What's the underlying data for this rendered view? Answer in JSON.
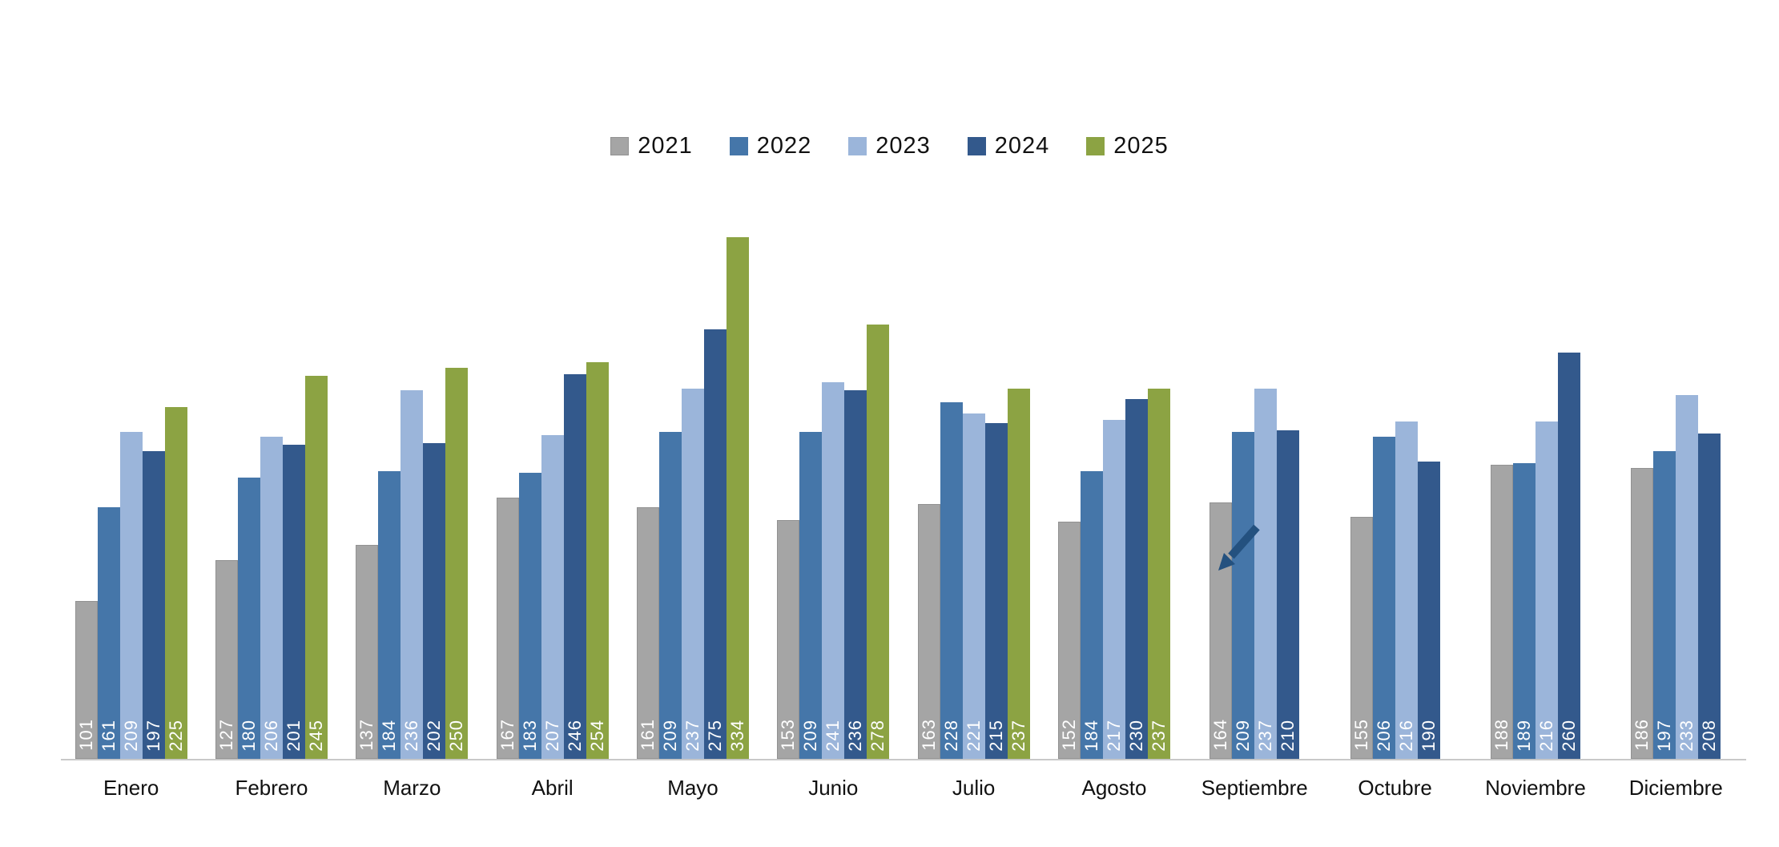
{
  "chart_data": {
    "type": "bar",
    "title": "",
    "xlabel": "",
    "ylabel": "",
    "categories": [
      "Enero",
      "Febrero",
      "Marzo",
      "Abril",
      "Mayo",
      "Junio",
      "Julio",
      "Agosto",
      "Septiembre",
      "Octubre",
      "Noviembre",
      "Diciembre"
    ],
    "series": [
      {
        "name": "2021",
        "color": "#a5a5a5",
        "border": "#929292",
        "values": [
          101,
          127,
          137,
          167,
          161,
          153,
          163,
          152,
          164,
          155,
          188,
          186
        ]
      },
      {
        "name": "2022",
        "color": "#4576a9",
        "border": null,
        "values": [
          161,
          180,
          184,
          183,
          209,
          209,
          228,
          184,
          209,
          206,
          189,
          197
        ]
      },
      {
        "name": "2023",
        "color": "#9bb5da",
        "border": null,
        "values": [
          209,
          206,
          236,
          207,
          237,
          241,
          221,
          217,
          237,
          216,
          216,
          233
        ]
      },
      {
        "name": "2024",
        "color": "#33598c",
        "border": null,
        "values": [
          197,
          201,
          202,
          246,
          275,
          236,
          215,
          230,
          210,
          190,
          260,
          208
        ]
      },
      {
        "name": "2025",
        "color": "#8ca343",
        "border": null,
        "values": [
          225,
          245,
          250,
          254,
          334,
          278,
          237,
          237,
          null,
          null,
          null,
          null
        ]
      }
    ],
    "ylim": [
      0,
      362
    ],
    "grid": false,
    "legend_position": "top-center",
    "bar_value_labels": "white, rotated 90°, inside bar at base",
    "annotation": {
      "type": "arrow",
      "target_category": "Agosto",
      "target_series": "2025",
      "color": "#24517f"
    }
  }
}
